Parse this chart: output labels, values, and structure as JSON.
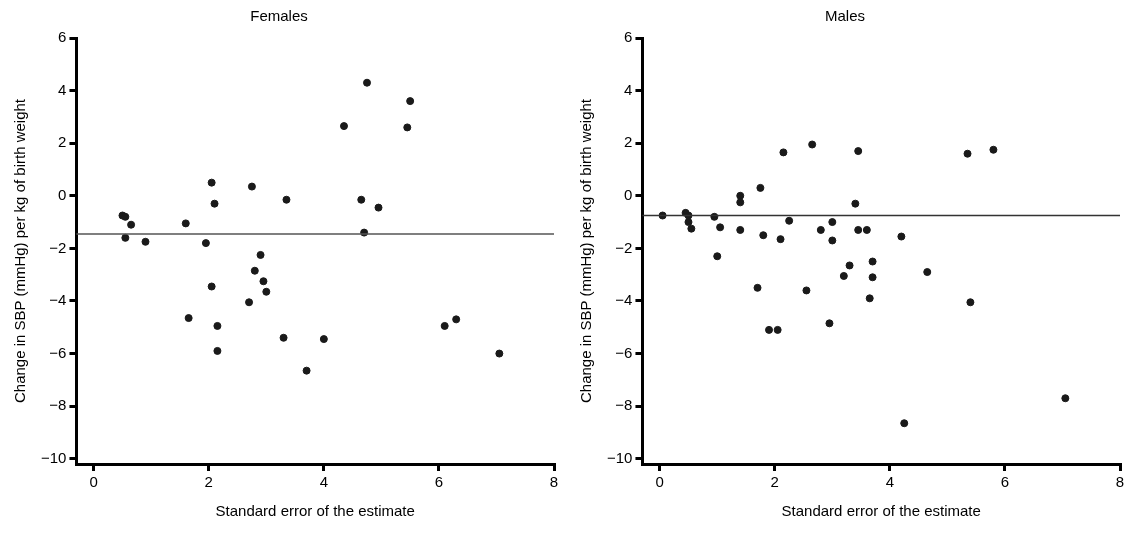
{
  "chart_data": [
    {
      "type": "scatter",
      "title": "Females",
      "xlabel": "Standard error of the estimate",
      "ylabel": "Change in SBP (mmHg) per kg of birth weight",
      "x": [
        0.5,
        0.55,
        0.65,
        0.55,
        0.9,
        1.6,
        1.65,
        1.95,
        2.05,
        2.1,
        2.05,
        2.15,
        2.15,
        2.75,
        2.7,
        2.8,
        2.9,
        2.95,
        3.0,
        3.3,
        3.35,
        3.7,
        4.0,
        4.35,
        4.65,
        4.7,
        4.75,
        4.95,
        5.45,
        5.5,
        6.1,
        6.3,
        7.05
      ],
      "values": [
        -0.75,
        -0.8,
        -1.1,
        -1.6,
        -1.75,
        -1.05,
        -4.65,
        -1.8,
        0.5,
        -0.3,
        -3.45,
        -4.95,
        -5.9,
        0.35,
        -4.05,
        -2.85,
        -2.25,
        -3.25,
        -3.65,
        -5.4,
        -0.15,
        -6.65,
        -5.45,
        2.65,
        -0.15,
        -1.4,
        4.3,
        -0.45,
        2.6,
        3.6,
        -4.95,
        -4.7,
        -6.0
      ],
      "color": "#1a1a1a",
      "marker": "circle",
      "xlim": [
        -0.3,
        8
      ],
      "ylim": [
        -10.2,
        6
      ],
      "xticks": [
        0,
        2,
        4,
        6,
        8
      ],
      "yticks": [
        -10,
        -8,
        -6,
        -4,
        -2,
        0,
        2,
        4,
        6
      ],
      "grid": false,
      "legend": false,
      "ref_lines": [
        {
          "axis": "y",
          "value": -1.45,
          "color": "#555555"
        }
      ]
    },
    {
      "type": "scatter",
      "title": "Males",
      "xlabel": "Standard error of the estimate",
      "ylabel": "Change in SBP (mmHg) per kg of birth weight",
      "x": [
        0.05,
        0.45,
        0.5,
        0.5,
        0.55,
        0.95,
        1.0,
        1.05,
        1.4,
        1.4,
        1.4,
        1.7,
        1.75,
        1.8,
        1.9,
        2.05,
        2.1,
        2.15,
        2.25,
        2.55,
        2.65,
        2.8,
        2.95,
        3.0,
        3.0,
        3.2,
        3.3,
        3.4,
        3.45,
        3.45,
        3.6,
        3.7,
        3.7,
        3.65,
        4.2,
        4.25,
        4.65,
        5.35,
        5.4,
        5.8,
        7.05
      ],
      "values": [
        -0.75,
        -0.65,
        -0.75,
        -1.0,
        -1.25,
        -0.8,
        -2.3,
        -1.2,
        0.0,
        -0.25,
        -1.3,
        -3.5,
        0.3,
        -1.5,
        -5.1,
        -5.1,
        -1.65,
        1.65,
        -0.95,
        -3.6,
        1.95,
        -1.3,
        -4.85,
        -1.0,
        -1.7,
        -3.05,
        -2.65,
        -0.3,
        1.7,
        -1.3,
        -1.3,
        -2.5,
        -3.1,
        -3.9,
        -1.55,
        -8.65,
        -2.9,
        1.6,
        -4.05,
        1.75,
        -7.7
      ],
      "color": "#1a1a1a",
      "marker": "circle",
      "xlim": [
        -0.3,
        8
      ],
      "ylim": [
        -10.2,
        6
      ],
      "xticks": [
        0,
        2,
        4,
        6,
        8
      ],
      "yticks": [
        -10,
        -8,
        -6,
        -4,
        -2,
        0,
        2,
        4,
        6
      ],
      "grid": false,
      "legend": false,
      "ref_lines": [
        {
          "axis": "y",
          "value": -0.75,
          "color": "#333333"
        }
      ]
    }
  ]
}
